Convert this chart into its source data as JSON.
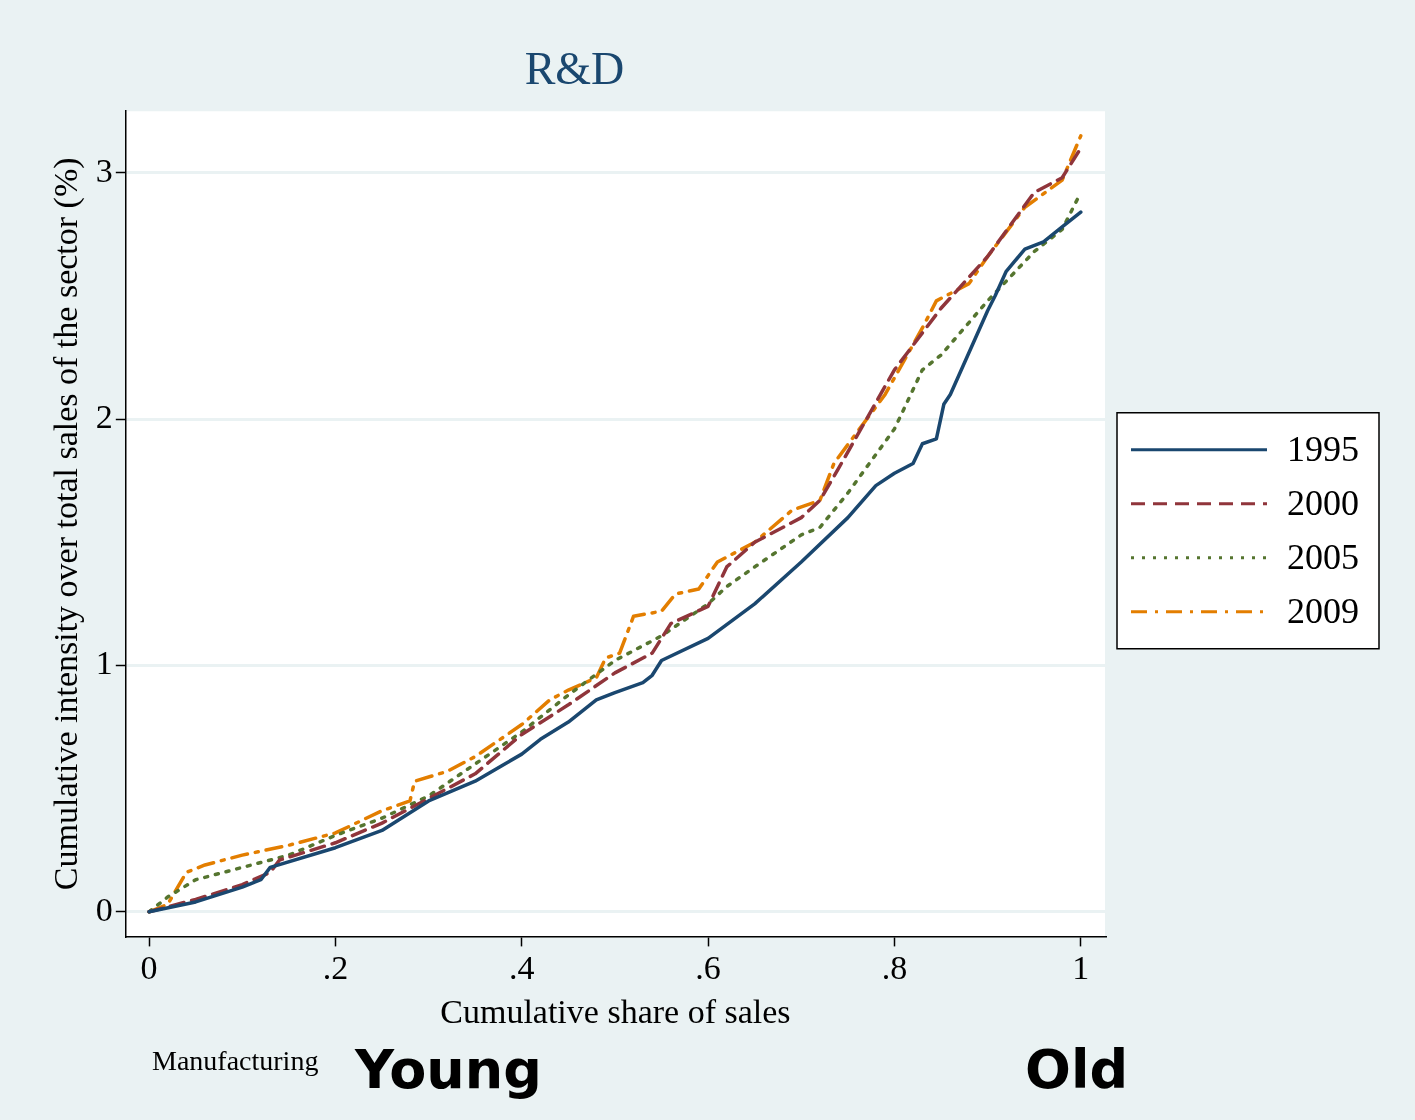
{
  "chart_data": {
    "type": "line",
    "title": "R&D",
    "xlabel": "Cumulative share of sales",
    "ylabel": "Cumulative intensity over total sales of the sector (%)",
    "xlim": [
      -0.025,
      1.026
    ],
    "ylim": [
      -0.1,
      3.25
    ],
    "xticks": [
      0,
      {
        "value": 0.2,
        "label": ".2"
      },
      {
        "value": 0.4,
        "label": ".4"
      },
      {
        "value": 0.6,
        "label": ".6"
      },
      {
        "value": 0.8,
        "label": ".8"
      },
      1
    ],
    "yticks": [
      0,
      1,
      2,
      3
    ],
    "grid": "y",
    "legend": "right",
    "marker": "none",
    "annotations": [
      "Manufacturing",
      "Young",
      "Old"
    ],
    "series": [
      {
        "name": "1995",
        "color": "#1a476f",
        "line_style": "solid",
        "x": [
          0,
          0.05,
          0.1,
          0.12,
          0.13,
          0.2,
          0.25,
          0.3,
          0.35,
          0.4,
          0.42,
          0.45,
          0.48,
          0.5,
          0.53,
          0.54,
          0.55,
          0.6,
          0.65,
          0.7,
          0.75,
          0.78,
          0.8,
          0.82,
          0.83,
          0.845,
          0.853,
          0.86,
          0.9,
          0.908,
          0.92,
          0.94,
          0.96,
          0.98,
          1
        ],
        "values": [
          0,
          0.04,
          0.1,
          0.13,
          0.18,
          0.26,
          0.33,
          0.45,
          0.53,
          0.64,
          0.7,
          0.77,
          0.86,
          0.89,
          0.93,
          0.96,
          1.02,
          1.11,
          1.25,
          1.42,
          1.6,
          1.73,
          1.78,
          1.82,
          1.9,
          1.92,
          2.06,
          2.1,
          2.44,
          2.5,
          2.6,
          2.69,
          2.72,
          2.78,
          2.84
        ]
      },
      {
        "name": "2000",
        "color": "#90353b",
        "line_style": "dashed",
        "x": [
          0,
          0.05,
          0.1,
          0.13,
          0.14,
          0.2,
          0.25,
          0.3,
          0.35,
          0.4,
          0.45,
          0.5,
          0.53,
          0.54,
          0.56,
          0.6,
          0.62,
          0.65,
          0.7,
          0.72,
          0.74,
          0.8,
          0.85,
          0.9,
          0.95,
          0.98,
          1
        ],
        "values": [
          0,
          0.05,
          0.11,
          0.16,
          0.21,
          0.28,
          0.36,
          0.46,
          0.56,
          0.72,
          0.84,
          0.97,
          1.03,
          1.05,
          1.17,
          1.24,
          1.4,
          1.5,
          1.6,
          1.67,
          1.8,
          2.2,
          2.45,
          2.66,
          2.92,
          2.98,
          3.1
        ]
      },
      {
        "name": "2005",
        "color": "#55752f",
        "line_style": "dotted",
        "x": [
          0,
          0.02,
          0.05,
          0.1,
          0.15,
          0.2,
          0.25,
          0.3,
          0.35,
          0.4,
          0.45,
          0.5,
          0.55,
          0.6,
          0.62,
          0.65,
          0.7,
          0.72,
          0.75,
          0.8,
          0.83,
          0.85,
          0.9,
          0.95,
          0.98,
          1
        ],
        "values": [
          0,
          0.06,
          0.13,
          0.18,
          0.23,
          0.31,
          0.38,
          0.47,
          0.6,
          0.73,
          0.88,
          1.02,
          1.12,
          1.25,
          1.32,
          1.4,
          1.53,
          1.56,
          1.7,
          1.96,
          2.2,
          2.26,
          2.48,
          2.68,
          2.77,
          2.92
        ]
      },
      {
        "name": "2009",
        "color": "#e37e00",
        "line_style": "dashdot",
        "x": [
          0,
          0.02,
          0.04,
          0.06,
          0.1,
          0.15,
          0.2,
          0.25,
          0.28,
          0.285,
          0.32,
          0.35,
          0.4,
          0.43,
          0.45,
          0.48,
          0.49,
          0.505,
          0.52,
          0.55,
          0.565,
          0.59,
          0.61,
          0.65,
          0.69,
          0.72,
          0.735,
          0.79,
          0.83,
          0.845,
          0.88,
          0.9,
          0.94,
          0.98,
          1
        ],
        "values": [
          0,
          0.03,
          0.16,
          0.19,
          0.23,
          0.27,
          0.32,
          0.41,
          0.45,
          0.53,
          0.57,
          0.63,
          0.76,
          0.86,
          0.9,
          0.95,
          1.03,
          1.05,
          1.2,
          1.22,
          1.29,
          1.31,
          1.42,
          1.5,
          1.63,
          1.67,
          1.82,
          2.1,
          2.37,
          2.48,
          2.55,
          2.66,
          2.86,
          2.97,
          3.15
        ]
      }
    ]
  }
}
